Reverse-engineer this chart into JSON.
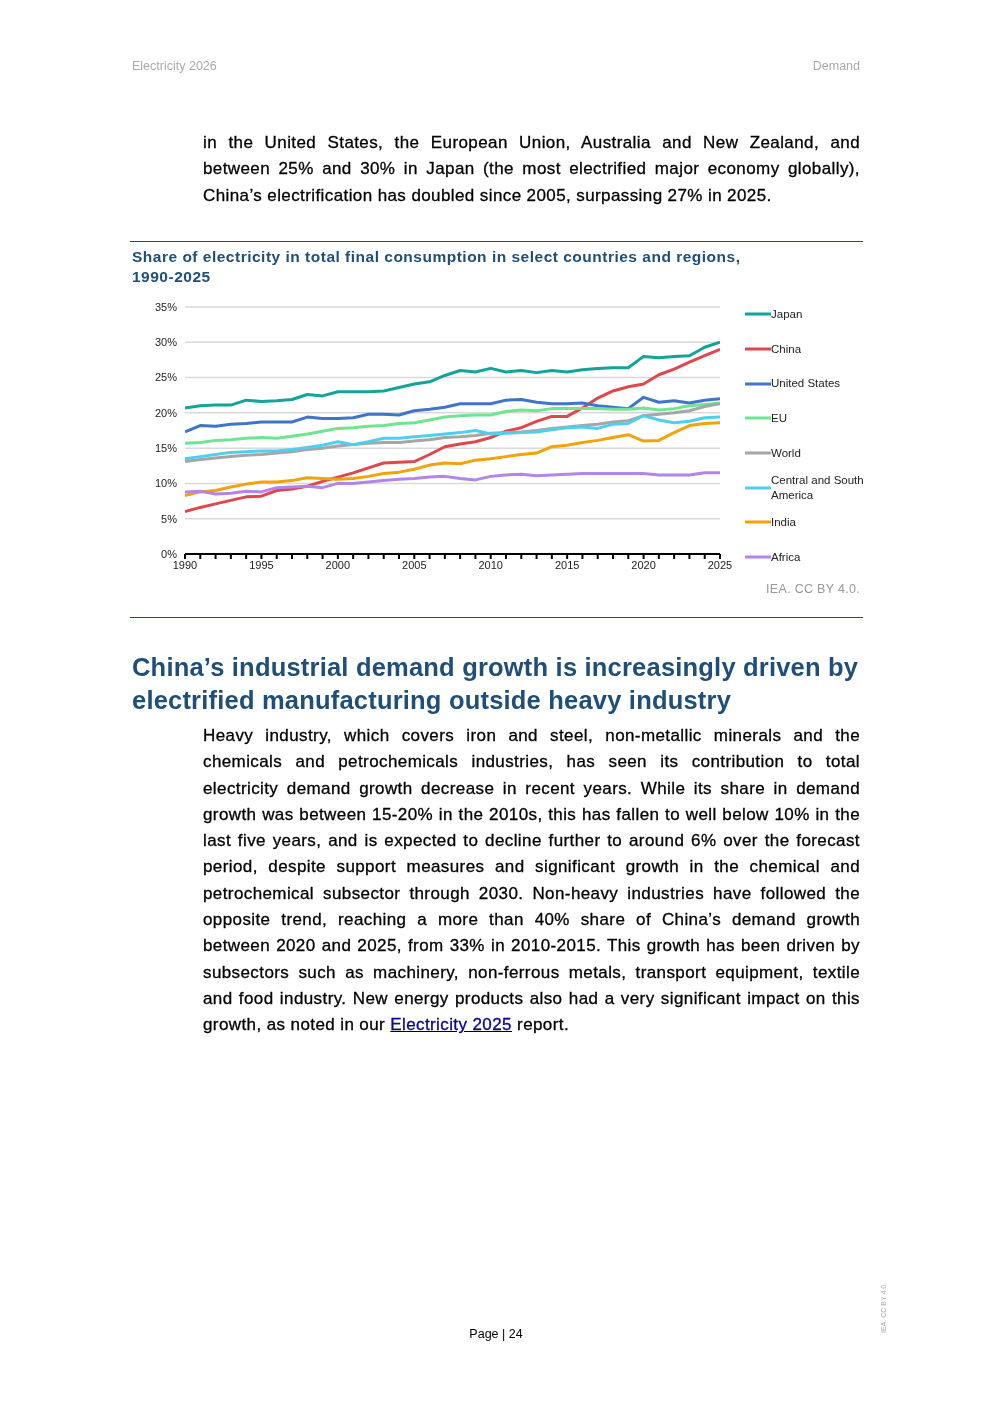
{
  "chart_data": {
    "type": "line",
    "title": "Share of electricity in total final consumption in select countries and regions, 1990-2025",
    "annotations": [
      "Electricity 2026",
      "Demand",
      "in the United States, the European Union, Australia and New Zealand, and between 25% and 30% in Japan (the most electrified major economy globally), China’s electrification has doubled since 2005, surpassing 27% in 2025.",
      "IEA. CC BY 4.0.",
      "China’s industrial demand growth is increasingly driven by electrified manufacturing outside heavy industry",
      "Heavy industry, which covers iron and steel, non-metallic minerals and the chemicals and petrochemicals industries, has seen its contribution to total electricity demand growth decrease in recent years. While its share in demand growth was between 15-20% in the 2010s, this has fallen to well below 10% in the last five years, and is expected to decline further to around 6% over the forecast period, despite support measures and significant growth in the chemical and petrochemical subsector through 2030. Non-heavy industries have followed the opposite trend, reaching a more than 40% share of China’s demand growth between 2020 and 2025, from 33% in 2010-2015. This growth has been driven by subsectors such as machinery, non-ferrous metals, transport equipment, textile and food industry. New energy products also had a very significant impact on this growth, as noted in our",
      "Electricity 2025",
      "report.",
      "Page | 24",
      "IEA. CC BY 4.0."
    ],
    "x": [
      1990,
      1991,
      1992,
      1993,
      1994,
      1995,
      1996,
      1997,
      1998,
      1999,
      2000,
      2001,
      2002,
      2003,
      2004,
      2005,
      2006,
      2007,
      2008,
      2009,
      2010,
      2011,
      2012,
      2013,
      2014,
      2015,
      2016,
      2017,
      2018,
      2019,
      2020,
      2021,
      2022,
      2023,
      2024,
      2025
    ],
    "series": [
      {
        "name": "Japan",
        "color": "#12a39a",
        "values": [
          20.7,
          21.0,
          21.1,
          21.1,
          21.8,
          21.6,
          21.7,
          21.9,
          22.6,
          22.4,
          23.0,
          23.0,
          23.0,
          23.1,
          23.6,
          24.1,
          24.4,
          25.3,
          26.0,
          25.8,
          26.3,
          25.8,
          26.0,
          25.7,
          26.0,
          25.8,
          26.1,
          26.3,
          26.4,
          26.4,
          28.0,
          27.8,
          28.0,
          28.1,
          29.3,
          30.0
        ]
      },
      {
        "name": "China",
        "color": "#e0474c",
        "values": [
          6.0,
          6.6,
          7.1,
          7.6,
          8.1,
          8.2,
          9.0,
          9.2,
          9.6,
          10.3,
          10.9,
          11.5,
          12.2,
          12.9,
          13.0,
          13.1,
          14.1,
          15.2,
          15.6,
          15.9,
          16.5,
          17.4,
          17.9,
          18.8,
          19.5,
          19.5,
          20.7,
          22.1,
          23.1,
          23.7,
          24.1,
          25.4,
          26.2,
          27.2,
          28.1,
          29.0
        ]
      },
      {
        "name": "United States",
        "color": "#3f74c9",
        "values": [
          17.3,
          18.2,
          18.1,
          18.4,
          18.5,
          18.7,
          18.7,
          18.7,
          19.4,
          19.2,
          19.2,
          19.3,
          19.8,
          19.8,
          19.7,
          20.3,
          20.5,
          20.8,
          21.3,
          21.3,
          21.3,
          21.8,
          21.9,
          21.5,
          21.3,
          21.3,
          21.4,
          21.0,
          20.8,
          20.6,
          22.2,
          21.5,
          21.7,
          21.4,
          21.8,
          22.0
        ]
      },
      {
        "name": "EU",
        "color": "#6ee58f",
        "values": [
          15.7,
          15.8,
          16.1,
          16.2,
          16.4,
          16.5,
          16.4,
          16.7,
          17.0,
          17.4,
          17.8,
          17.9,
          18.1,
          18.2,
          18.5,
          18.6,
          19.0,
          19.4,
          19.6,
          19.7,
          19.7,
          20.2,
          20.4,
          20.3,
          20.6,
          20.6,
          20.6,
          20.6,
          20.5,
          20.5,
          20.7,
          20.4,
          20.6,
          21.0,
          21.2,
          21.4
        ]
      },
      {
        "name": "World",
        "color": "#a6a6a6",
        "values": [
          13.1,
          13.4,
          13.6,
          13.8,
          14.0,
          14.1,
          14.3,
          14.5,
          14.8,
          15.0,
          15.3,
          15.5,
          15.7,
          15.8,
          15.8,
          16.0,
          16.2,
          16.5,
          16.6,
          16.8,
          17.1,
          17.2,
          17.3,
          17.5,
          17.8,
          18.0,
          18.2,
          18.4,
          18.7,
          18.9,
          19.6,
          19.8,
          20.0,
          20.3,
          20.9,
          21.3
        ]
      },
      {
        "name": "Central and South America",
        "color": "#4fcff0",
        "values": [
          13.5,
          13.8,
          14.1,
          14.4,
          14.5,
          14.6,
          14.6,
          14.8,
          15.1,
          15.4,
          15.9,
          15.5,
          15.9,
          16.4,
          16.4,
          16.6,
          16.8,
          17.0,
          17.2,
          17.5,
          17.0,
          17.1,
          17.2,
          17.3,
          17.6,
          17.9,
          18.0,
          17.8,
          18.4,
          18.5,
          19.6,
          19.0,
          18.6,
          18.8,
          19.3,
          19.4
        ]
      },
      {
        "name": "India",
        "color": "#f0a30a",
        "values": [
          8.3,
          8.8,
          9.0,
          9.5,
          9.9,
          10.2,
          10.2,
          10.4,
          10.8,
          10.7,
          10.6,
          10.7,
          11.0,
          11.4,
          11.6,
          12.0,
          12.6,
          12.9,
          12.8,
          13.3,
          13.5,
          13.8,
          14.1,
          14.3,
          15.2,
          15.4,
          15.8,
          16.1,
          16.5,
          16.9,
          16.0,
          16.1,
          17.2,
          18.2,
          18.5,
          18.6
        ]
      },
      {
        "name": "Africa",
        "color": "#b385e8",
        "values": [
          8.8,
          8.9,
          8.5,
          8.6,
          8.9,
          8.8,
          9.4,
          9.5,
          9.6,
          9.4,
          10.0,
          10.0,
          10.2,
          10.4,
          10.6,
          10.7,
          10.9,
          11.0,
          10.7,
          10.5,
          11.0,
          11.2,
          11.3,
          11.1,
          11.2,
          11.3,
          11.4,
          11.4,
          11.4,
          11.4,
          11.4,
          11.2,
          11.2,
          11.2,
          11.5,
          11.5
        ]
      }
    ],
    "xlim": [
      1990,
      2025
    ],
    "xticks": [
      1990,
      {
        "value": 1991,
        "label": null
      },
      {
        "value": 1992,
        "label": null
      },
      {
        "value": 1993,
        "label": null
      },
      {
        "value": 1994,
        "label": null
      },
      1995,
      {
        "value": 1996,
        "label": null
      },
      {
        "value": 1997,
        "label": null
      },
      {
        "value": 1998,
        "label": null
      },
      {
        "value": 1999,
        "label": null
      },
      2000,
      {
        "value": 2001,
        "label": null
      },
      {
        "value": 2002,
        "label": null
      },
      {
        "value": 2003,
        "label": null
      },
      {
        "value": 2004,
        "label": null
      },
      2005,
      {
        "value": 2006,
        "label": null
      },
      {
        "value": 2007,
        "label": null
      },
      {
        "value": 2008,
        "label": null
      },
      {
        "value": 2009,
        "label": null
      },
      2010,
      {
        "value": 2011,
        "label": null
      },
      {
        "value": 2012,
        "label": null
      },
      {
        "value": 2013,
        "label": null
      },
      {
        "value": 2014,
        "label": null
      },
      2015,
      {
        "value": 2016,
        "label": null
      },
      {
        "value": 2017,
        "label": null
      },
      {
        "value": 2018,
        "label": null
      },
      {
        "value": 2019,
        "label": null
      },
      2020,
      {
        "value": 2021,
        "label": null
      },
      {
        "value": 2022,
        "label": null
      },
      {
        "value": 2023,
        "label": null
      },
      {
        "value": 2024,
        "label": null
      },
      2025
    ],
    "ylim": [
      0,
      35
    ],
    "yticks": [
      {
        "value": 0,
        "label": "0%"
      },
      {
        "value": 5,
        "label": "5%"
      },
      {
        "value": 10,
        "label": "10%"
      },
      {
        "value": 15,
        "label": "15%"
      },
      {
        "value": 20,
        "label": "20%"
      },
      {
        "value": 25,
        "label": "25%"
      },
      {
        "value": 30,
        "label": "30%"
      },
      {
        "value": 35,
        "label": "35%"
      }
    ],
    "grid": "y",
    "legend": "right",
    "line_style": "solid"
  }
}
